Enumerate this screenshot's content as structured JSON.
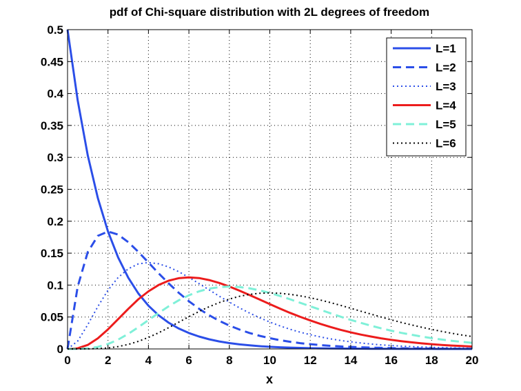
{
  "chart_data": {
    "type": "line",
    "title": "pdf of Chi-square distribution with 2L degrees of freedom",
    "xlabel": "x",
    "ylabel": "",
    "xlim": [
      0,
      20
    ],
    "ylim": [
      0,
      0.5
    ],
    "x_ticks": [
      "0",
      "2",
      "4",
      "6",
      "8",
      "10",
      "12",
      "14",
      "16",
      "18",
      "20"
    ],
    "y_ticks": [
      "0",
      "0.05",
      "0.1",
      "0.15",
      "0.2",
      "0.25",
      "0.3",
      "0.35",
      "0.4",
      "0.45",
      "0.5"
    ],
    "grid": true,
    "legend_position": "top-right",
    "x": [
      0,
      0.5,
      1,
      1.5,
      2,
      2.5,
      3,
      3.5,
      4,
      4.5,
      5,
      5.5,
      6,
      6.5,
      7,
      7.5,
      8,
      8.5,
      9,
      9.5,
      10,
      10.5,
      11,
      11.5,
      12,
      12.5,
      13,
      13.5,
      14,
      14.5,
      15,
      15.5,
      16,
      16.5,
      17,
      17.5,
      18,
      18.5,
      19,
      19.5,
      20
    ],
    "series": [
      {
        "name": "L=1",
        "color": "#2b4ee8",
        "style": "solid",
        "values": [
          0.5,
          0.3894,
          0.3033,
          0.2362,
          0.1839,
          0.1433,
          0.1116,
          0.0869,
          0.0677,
          0.0527,
          0.041,
          0.032,
          0.0249,
          0.0194,
          0.0151,
          0.0118,
          0.0092,
          0.0071,
          0.0056,
          0.0043,
          0.0034,
          0.0026,
          0.002,
          0.0016,
          0.0012,
          0.001,
          0.0008,
          0.0006,
          0.0005,
          0.0004,
          0.0003,
          0.0002,
          0.0002,
          0.0001,
          0.0001,
          0.0001,
          0.0001,
          0,
          0,
          0,
          0
        ]
      },
      {
        "name": "L=2",
        "color": "#2b4ee8",
        "style": "dashed",
        "values": [
          0,
          0.0973,
          0.1516,
          0.1771,
          0.1839,
          0.1791,
          0.1673,
          0.1521,
          0.1353,
          0.1185,
          0.1026,
          0.0879,
          0.0747,
          0.063,
          0.0528,
          0.0441,
          0.0366,
          0.0303,
          0.025,
          0.0205,
          0.0168,
          0.0137,
          0.0112,
          0.0091,
          0.0074,
          0.006,
          0.0049,
          0.0039,
          0.0032,
          0.0026,
          0.0021,
          0.0017,
          0.0013,
          0.0011,
          0.0009,
          0.0007,
          0.0006,
          0.0004,
          0.0004,
          0.0003,
          0.0002
        ]
      },
      {
        "name": "L=3",
        "color": "#2b4ee8",
        "style": "dotted",
        "values": [
          0,
          0.0122,
          0.0379,
          0.0664,
          0.092,
          0.1119,
          0.1255,
          0.1331,
          0.1353,
          0.1334,
          0.1283,
          0.1209,
          0.112,
          0.1024,
          0.0925,
          0.0826,
          0.0733,
          0.0644,
          0.0562,
          0.0488,
          0.0421,
          0.0361,
          0.0308,
          0.0262,
          0.0223,
          0.0188,
          0.0158,
          0.0133,
          0.0111,
          0.0093,
          0.0077,
          0.0064,
          0.0054,
          0.0044,
          0.0037,
          0.003,
          0.0025,
          0.0021,
          0.0017,
          0.0014,
          0.0011
        ]
      },
      {
        "name": "L=4",
        "color": "#ec1c1c",
        "style": "solid",
        "values": [
          0,
          0.001,
          0.0063,
          0.0166,
          0.0307,
          0.0466,
          0.0627,
          0.0777,
          0.0902,
          0.1001,
          0.1069,
          0.1108,
          0.112,
          0.111,
          0.1079,
          0.1033,
          0.0977,
          0.0913,
          0.0843,
          0.0773,
          0.0702,
          0.0632,
          0.0565,
          0.0503,
          0.0446,
          0.0392,
          0.0343,
          0.0299,
          0.026,
          0.0225,
          0.0194,
          0.0166,
          0.0143,
          0.0122,
          0.0104,
          0.0088,
          0.0075,
          0.0063,
          0.0053,
          0.0045,
          0.0038
        ]
      },
      {
        "name": "L=5",
        "color": "#7ff0d8",
        "style": "dashed",
        "values": [
          0,
          0.0001,
          0.0008,
          0.0031,
          0.0077,
          0.0146,
          0.0235,
          0.034,
          0.0451,
          0.0563,
          0.0668,
          0.0762,
          0.084,
          0.0902,
          0.0944,
          0.0968,
          0.0977,
          0.097,
          0.0949,
          0.0917,
          0.0877,
          0.0829,
          0.0777,
          0.0723,
          0.0668,
          0.0613,
          0.0558,
          0.0505,
          0.0455,
          0.0408,
          0.0364,
          0.0323,
          0.0286,
          0.0252,
          0.0222,
          0.0194,
          0.0169,
          0.0147,
          0.0127,
          0.011,
          0.0095
        ]
      },
      {
        "name": "L=6",
        "color": "#000000",
        "style": "dotted",
        "values": [
          0,
          0,
          0.0001,
          0.0005,
          0.0015,
          0.0037,
          0.007,
          0.0119,
          0.018,
          0.0253,
          0.0334,
          0.0419,
          0.0504,
          0.0586,
          0.0661,
          0.0726,
          0.0781,
          0.0824,
          0.0854,
          0.0871,
          0.0877,
          0.0871,
          0.0855,
          0.0831,
          0.0801,
          0.0766,
          0.0726,
          0.0682,
          0.0637,
          0.0591,
          0.0545,
          0.05,
          0.0457,
          0.0415,
          0.0377,
          0.034,
          0.0306,
          0.0274,
          0.0245,
          0.0218,
          0.0194
        ]
      }
    ]
  }
}
